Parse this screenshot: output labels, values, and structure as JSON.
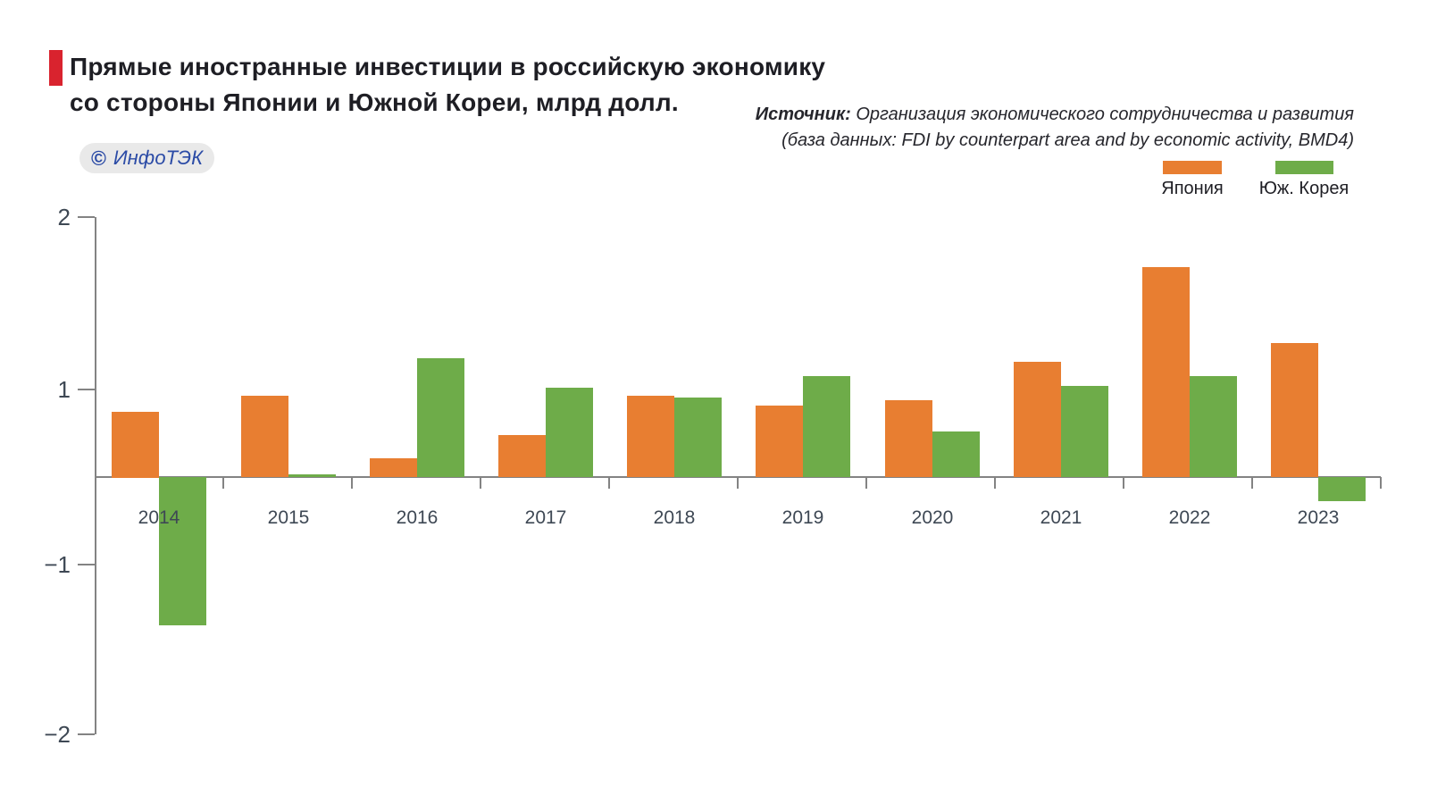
{
  "header": {
    "title_line1": "Прямые иностранные инвестиции в российскую экономику",
    "title_line2": "со стороны Японии и Южной Кореи, млрд долл.",
    "accent_color": "#D9232E"
  },
  "watermark": {
    "symbol": "©",
    "text": "ИнфоТЭК",
    "color": "#2B4BA6",
    "background": "#E9E9E9"
  },
  "source": {
    "label": "Источник:",
    "line1": "Организация экономического сотрудничества и развития",
    "line2": "(база данных: FDI by counterpart area and by economic activity, BMD4)"
  },
  "chart_data": {
    "type": "bar",
    "title": "Прямые иностранные инвестиции в российскую экономику со стороны Японии и Южной Кореи, млрд долл.",
    "units": "млрд долл.",
    "categories": [
      "2014",
      "2015",
      "2016",
      "2017",
      "2018",
      "2019",
      "2020",
      "2021",
      "2022",
      "2023"
    ],
    "series": [
      {
        "name": "Япония",
        "color": "#E87E31",
        "values": [
          0.75,
          0.93,
          0.21,
          0.48,
          0.93,
          0.82,
          0.88,
          1.16,
          1.71,
          1.27
        ]
      },
      {
        "name": "Юж. Корея",
        "color": "#6EAC49",
        "values": [
          -1.36,
          0.03,
          1.18,
          1.01,
          0.91,
          1.08,
          0.52,
          1.02,
          1.08,
          -0.28
        ]
      }
    ],
    "y_ticks": [
      2,
      1,
      -1,
      -2
    ],
    "y_tick_labels": [
      "2",
      "1",
      "−1",
      "−2"
    ],
    "ylim": [
      -2,
      2
    ],
    "grid": false,
    "legend_position": "top-right",
    "axis_color": "#838383",
    "label_color": "#3E4854"
  }
}
